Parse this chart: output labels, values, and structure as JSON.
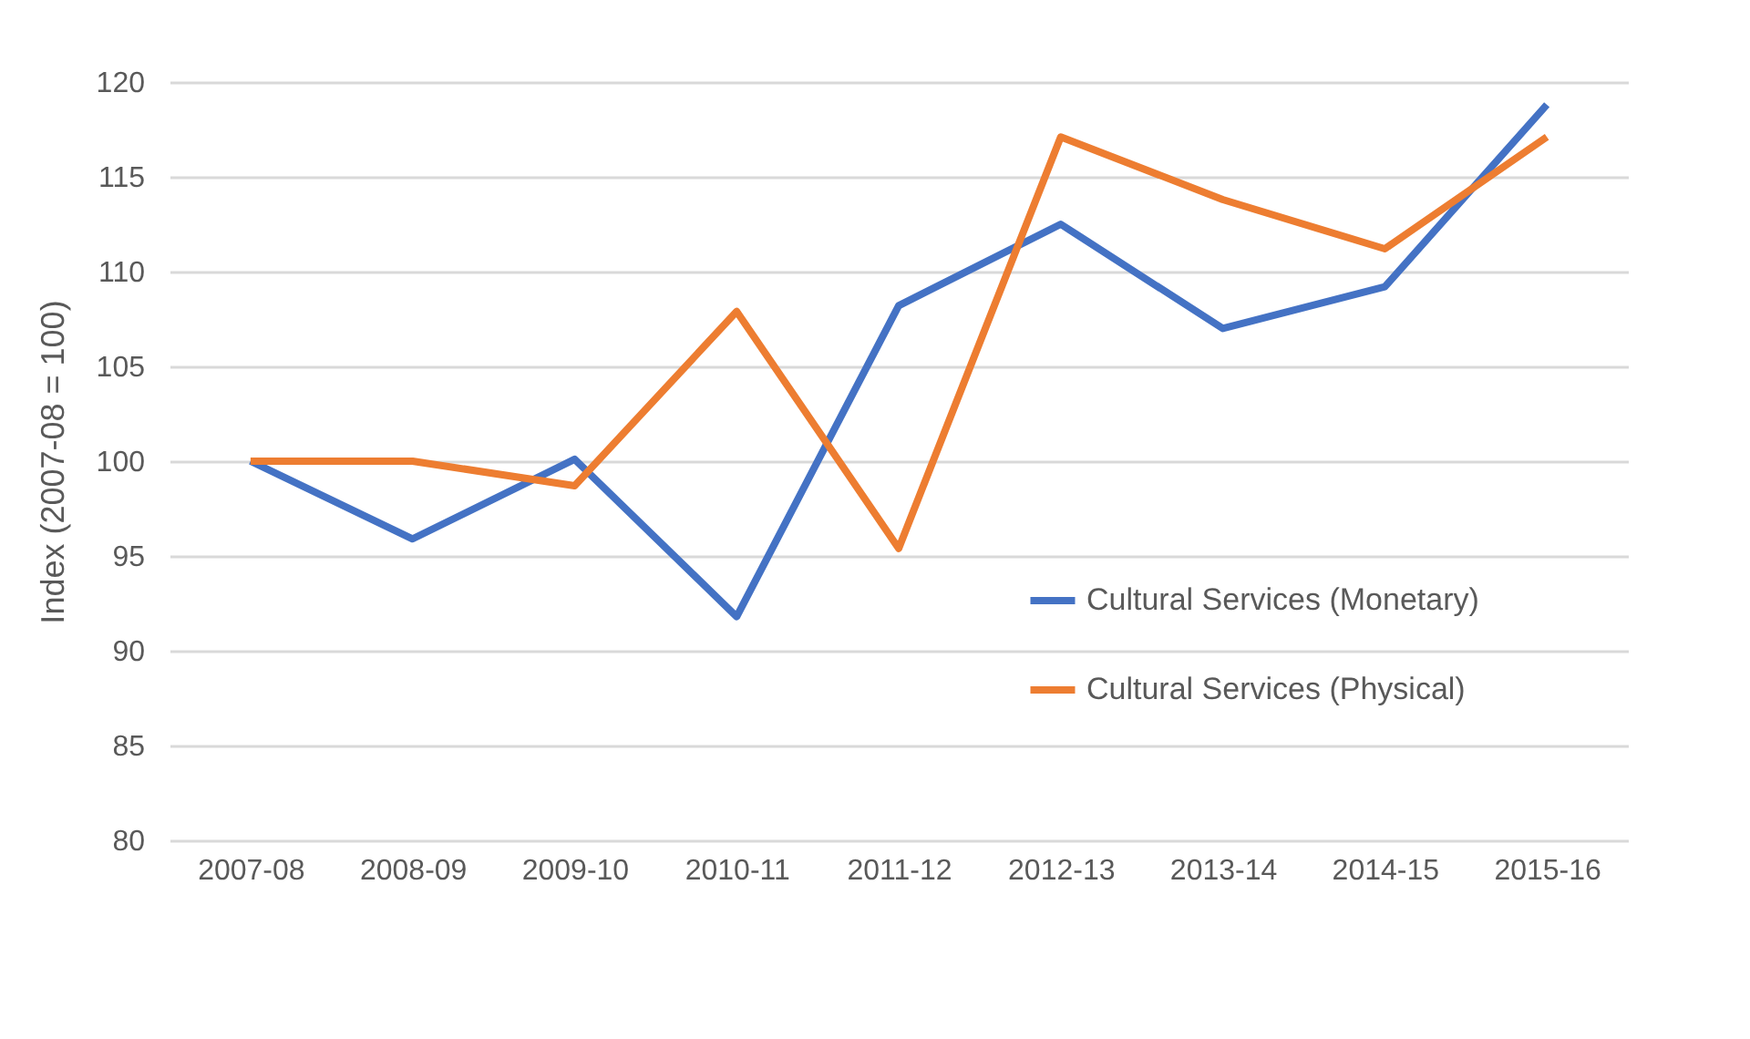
{
  "chart_data": {
    "type": "line",
    "ylabel": "Index (2007-08 = 100)",
    "categories": [
      "2007-08",
      "2008-09",
      "2009-10",
      "2010-11",
      "2011-12",
      "2012-13",
      "2013-14",
      "2014-15",
      "2015-16"
    ],
    "series": [
      {
        "name": "Cultural Services (Monetary)",
        "color": "#4472c4",
        "values": [
          100,
          95.9,
          100.1,
          91.8,
          108.2,
          112.5,
          107.0,
          109.2,
          118.8
        ]
      },
      {
        "name": "Cultural Services (Physical)",
        "color": "#ed7d31",
        "values": [
          100,
          100,
          98.7,
          107.9,
          95.4,
          117.1,
          113.8,
          111.2,
          117.1
        ]
      }
    ],
    "ylim": [
      80,
      120
    ],
    "yticks": [
      80,
      85,
      90,
      95,
      100,
      105,
      110,
      115,
      120
    ],
    "grid": "y",
    "legend": "right",
    "marker": "none",
    "line_style": "solid"
  }
}
